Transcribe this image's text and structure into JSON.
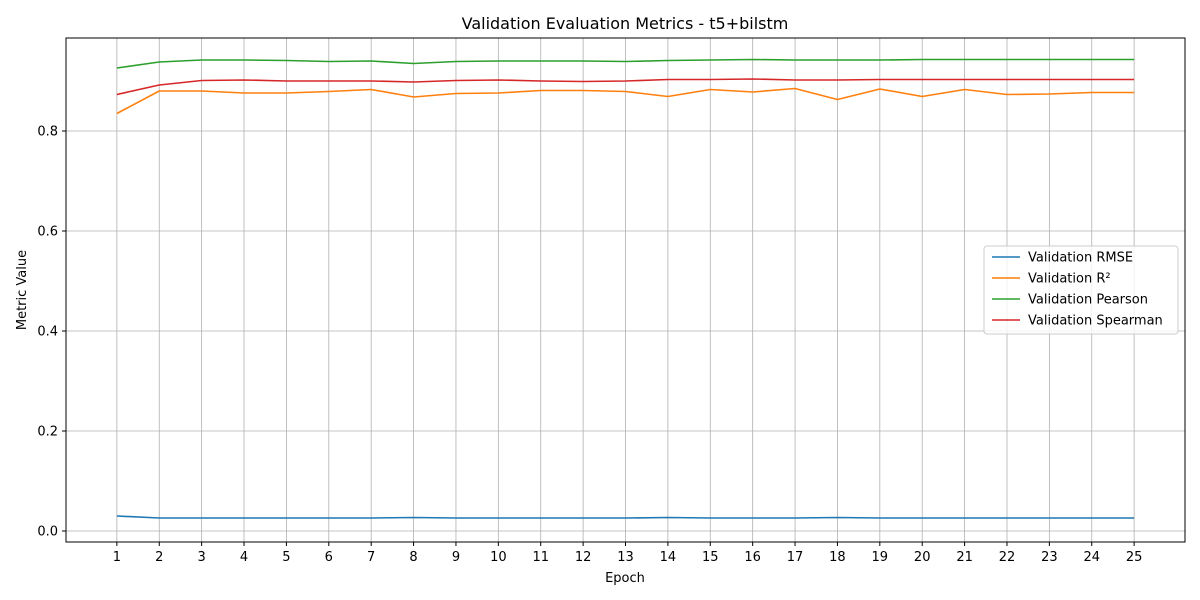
{
  "chart_data": {
    "type": "line",
    "title": "Validation Evaluation Metrics - t5+bilstm",
    "xlabel": "Epoch",
    "ylabel": "Metric Value",
    "x": [
      1,
      2,
      3,
      4,
      5,
      6,
      7,
      8,
      9,
      10,
      11,
      12,
      13,
      14,
      15,
      16,
      17,
      18,
      19,
      20,
      21,
      22,
      23,
      24,
      25
    ],
    "xlim": [
      -0.2,
      26.2
    ],
    "ylim": [
      -0.022,
      0.986
    ],
    "yticks": [
      0.0,
      0.2,
      0.4,
      0.6,
      0.8
    ],
    "ytick_labels": [
      "0.0",
      "0.2",
      "0.4",
      "0.6",
      "0.8"
    ],
    "grid": true,
    "legend_position": "center-right",
    "series": [
      {
        "name": "Validation RMSE",
        "color": "#1f77b4",
        "values": [
          0.03,
          0.026,
          0.026,
          0.026,
          0.026,
          0.026,
          0.026,
          0.027,
          0.026,
          0.026,
          0.026,
          0.026,
          0.026,
          0.027,
          0.026,
          0.026,
          0.026,
          0.027,
          0.026,
          0.026,
          0.026,
          0.026,
          0.026,
          0.026,
          0.026
        ]
      },
      {
        "name": "Validation R²",
        "color": "#ff7f0e",
        "values": [
          0.835,
          0.88,
          0.88,
          0.876,
          0.876,
          0.879,
          0.883,
          0.868,
          0.875,
          0.876,
          0.881,
          0.881,
          0.879,
          0.869,
          0.883,
          0.878,
          0.885,
          0.863,
          0.884,
          0.869,
          0.883,
          0.873,
          0.874,
          0.877,
          0.877
        ]
      },
      {
        "name": "Validation Pearson",
        "color": "#2ca02c",
        "values": [
          0.926,
          0.938,
          0.942,
          0.942,
          0.941,
          0.939,
          0.94,
          0.935,
          0.939,
          0.94,
          0.94,
          0.94,
          0.939,
          0.941,
          0.942,
          0.943,
          0.942,
          0.942,
          0.942,
          0.943,
          0.943,
          0.943,
          0.943,
          0.943,
          0.943
        ]
      },
      {
        "name": "Validation Spearman",
        "color": "#d62728",
        "values": [
          0.873,
          0.892,
          0.901,
          0.902,
          0.9,
          0.9,
          0.9,
          0.898,
          0.901,
          0.902,
          0.9,
          0.899,
          0.9,
          0.903,
          0.903,
          0.904,
          0.902,
          0.902,
          0.903,
          0.903,
          0.903,
          0.903,
          0.903,
          0.903,
          0.903
        ]
      }
    ]
  }
}
